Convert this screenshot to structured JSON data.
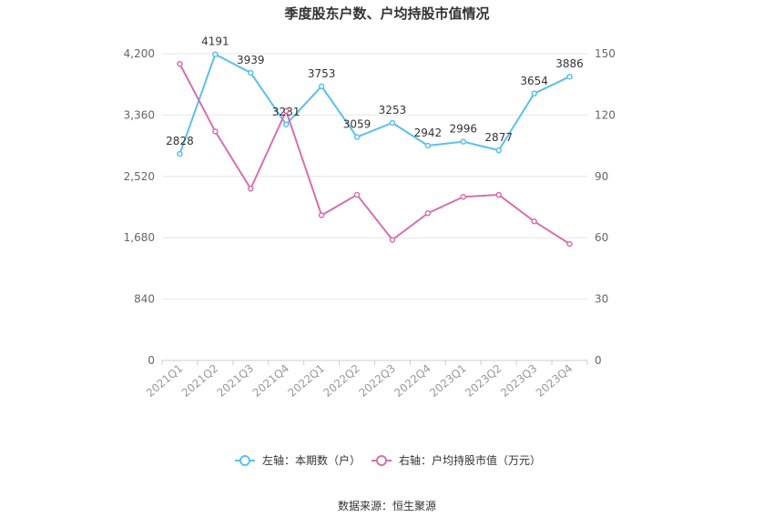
{
  "chart_data": {
    "type": "line",
    "title": "季度股东户数、户均持股市值情况",
    "categories": [
      "2021Q1",
      "2021Q2",
      "2021Q3",
      "2021Q4",
      "2022Q1",
      "2022Q2",
      "2022Q3",
      "2022Q4",
      "2023Q1",
      "2023Q2",
      "2023Q3",
      "2023Q4"
    ],
    "left_axis": {
      "ticks": [
        "0",
        "840",
        "1,680",
        "2,520",
        "3,360",
        "4,200"
      ],
      "ylim": [
        0,
        4200
      ]
    },
    "right_axis": {
      "ticks": [
        "0",
        "30",
        "60",
        "90",
        "120",
        "150"
      ],
      "ylim": [
        0,
        150
      ]
    },
    "series": [
      {
        "name": "左轴：本期数（户）",
        "axis": "left",
        "color": "#5bc0eb",
        "values": [
          2828,
          4191,
          3939,
          3231,
          3753,
          3059,
          3253,
          2942,
          2996,
          2877,
          3654,
          3886
        ],
        "labels": [
          "2828",
          "4191",
          "3939",
          "3231",
          "3753",
          "3059",
          "3253",
          "2942",
          "2996",
          "2877",
          "3654",
          "3886"
        ]
      },
      {
        "name": "右轴：户均持股市值（万元）",
        "axis": "right",
        "color": "#d670b0",
        "values": [
          145,
          112,
          84,
          122,
          71,
          81,
          59,
          72,
          80,
          81,
          68,
          57
        ]
      }
    ],
    "grid": true,
    "legend_position": "bottom"
  },
  "source": "数据来源：恒生聚源"
}
